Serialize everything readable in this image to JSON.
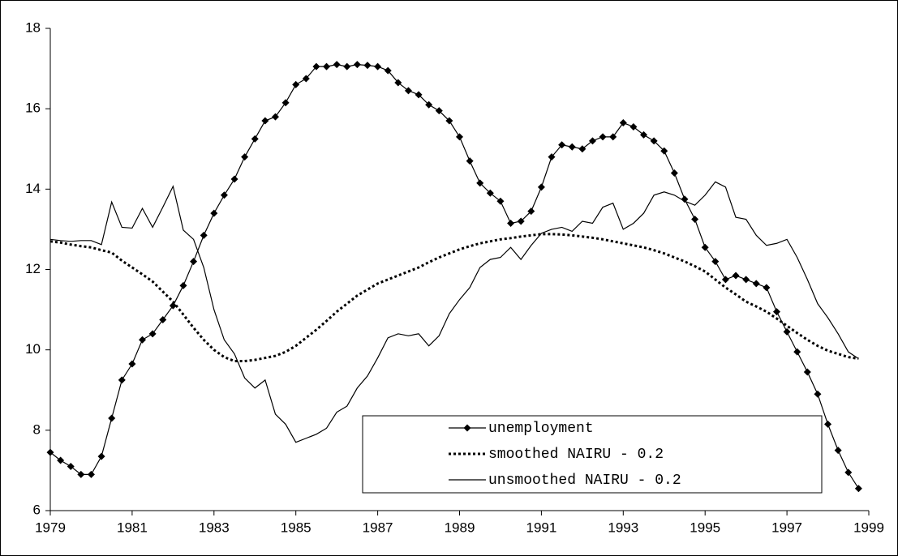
{
  "chart_data": {
    "type": "line",
    "x": [
      1979,
      1979.25,
      1979.5,
      1979.75,
      1980,
      1980.25,
      1980.5,
      1980.75,
      1981,
      1981.25,
      1981.5,
      1981.75,
      1982,
      1982.25,
      1982.5,
      1982.75,
      1983,
      1983.25,
      1983.5,
      1983.75,
      1984,
      1984.25,
      1984.5,
      1984.75,
      1985,
      1985.25,
      1985.5,
      1985.75,
      1986,
      1986.25,
      1986.5,
      1986.75,
      1987,
      1987.25,
      1987.5,
      1987.75,
      1988,
      1988.25,
      1988.5,
      1988.75,
      1989,
      1989.25,
      1989.5,
      1989.75,
      1990,
      1990.25,
      1990.5,
      1990.75,
      1991,
      1991.25,
      1991.5,
      1991.75,
      1992,
      1992.25,
      1992.5,
      1992.75,
      1993,
      1993.25,
      1993.5,
      1993.75,
      1994,
      1994.25,
      1994.5,
      1994.75,
      1995,
      1995.25,
      1995.5,
      1995.75,
      1996,
      1996.25,
      1996.5,
      1996.75,
      1997,
      1997.25,
      1997.5,
      1997.75,
      1998,
      1998.25,
      1998.5,
      1998.75
    ],
    "series": [
      {
        "name": "unemployment",
        "color": "#000000",
        "linestyle": "solid",
        "marker": "diamond",
        "values": [
          7.45,
          7.25,
          7.1,
          6.9,
          6.9,
          7.35,
          8.3,
          9.25,
          9.65,
          10.25,
          10.4,
          10.75,
          11.1,
          11.6,
          12.2,
          12.85,
          13.4,
          13.85,
          14.25,
          14.8,
          15.25,
          15.7,
          15.8,
          16.15,
          16.6,
          16.75,
          17.05,
          17.05,
          17.1,
          17.05,
          17.1,
          17.08,
          17.05,
          16.95,
          16.65,
          16.45,
          16.35,
          16.1,
          15.95,
          15.7,
          15.3,
          14.7,
          14.15,
          13.9,
          13.7,
          13.15,
          13.2,
          13.45,
          14.05,
          14.8,
          15.1,
          15.05,
          15.0,
          15.2,
          15.3,
          15.3,
          15.65,
          15.55,
          15.35,
          15.2,
          14.95,
          14.4,
          13.75,
          13.25,
          12.55,
          12.2,
          11.75,
          11.85,
          11.75,
          11.65,
          11.55,
          10.95,
          10.45,
          9.95,
          9.45,
          8.9,
          8.15,
          7.5,
          6.95,
          6.55
        ]
      },
      {
        "name": "smoothed NAIRU - 0.2",
        "color": "#000000",
        "linestyle": "dotted",
        "marker": "none",
        "values": [
          12.7,
          12.67,
          12.62,
          12.58,
          12.55,
          12.48,
          12.42,
          12.22,
          12.05,
          11.88,
          11.7,
          11.45,
          11.2,
          10.88,
          10.55,
          10.25,
          10.0,
          9.82,
          9.72,
          9.72,
          9.75,
          9.8,
          9.85,
          9.95,
          10.1,
          10.3,
          10.5,
          10.72,
          10.95,
          11.15,
          11.35,
          11.5,
          11.65,
          11.75,
          11.85,
          11.95,
          12.05,
          12.18,
          12.3,
          12.4,
          12.5,
          12.58,
          12.65,
          12.7,
          12.75,
          12.78,
          12.82,
          12.85,
          12.88,
          12.88,
          12.87,
          12.85,
          12.82,
          12.79,
          12.75,
          12.7,
          12.65,
          12.6,
          12.55,
          12.48,
          12.4,
          12.3,
          12.2,
          12.08,
          11.95,
          11.75,
          11.55,
          11.38,
          11.2,
          11.08,
          10.95,
          10.78,
          10.6,
          10.42,
          10.25,
          10.1,
          9.98,
          9.9,
          9.82,
          9.78
        ]
      },
      {
        "name": "unsmoothed NAIRU - 0.2",
        "color": "#000000",
        "linestyle": "solid",
        "marker": "none",
        "values": [
          12.75,
          12.72,
          12.7,
          12.72,
          12.72,
          12.62,
          13.68,
          13.05,
          13.03,
          13.52,
          13.05,
          13.55,
          14.07,
          12.98,
          12.75,
          12.05,
          11.0,
          10.25,
          9.9,
          9.3,
          9.05,
          9.25,
          8.4,
          8.15,
          7.7,
          7.8,
          7.9,
          8.05,
          8.45,
          8.6,
          9.05,
          9.35,
          9.8,
          10.3,
          10.4,
          10.35,
          10.4,
          10.1,
          10.35,
          10.9,
          11.25,
          11.55,
          12.05,
          12.25,
          12.3,
          12.55,
          12.25,
          12.6,
          12.9,
          13.0,
          13.05,
          12.95,
          13.2,
          13.15,
          13.55,
          13.65,
          13.0,
          13.15,
          13.4,
          13.85,
          13.93,
          13.85,
          13.7,
          13.6,
          13.85,
          14.18,
          14.05,
          13.3,
          13.25,
          12.85,
          12.6,
          12.65,
          12.75,
          12.3,
          11.75,
          11.15,
          10.8,
          10.4,
          9.95,
          9.78
        ]
      }
    ],
    "xlim": [
      1979,
      1999
    ],
    "xticks": [
      1979,
      1981,
      1983,
      1985,
      1987,
      1989,
      1991,
      1993,
      1995,
      1997,
      1999
    ],
    "ylim": [
      6,
      18
    ],
    "yticks": [
      6,
      8,
      10,
      12,
      14,
      16,
      18
    ],
    "legend": "bottom-right"
  }
}
